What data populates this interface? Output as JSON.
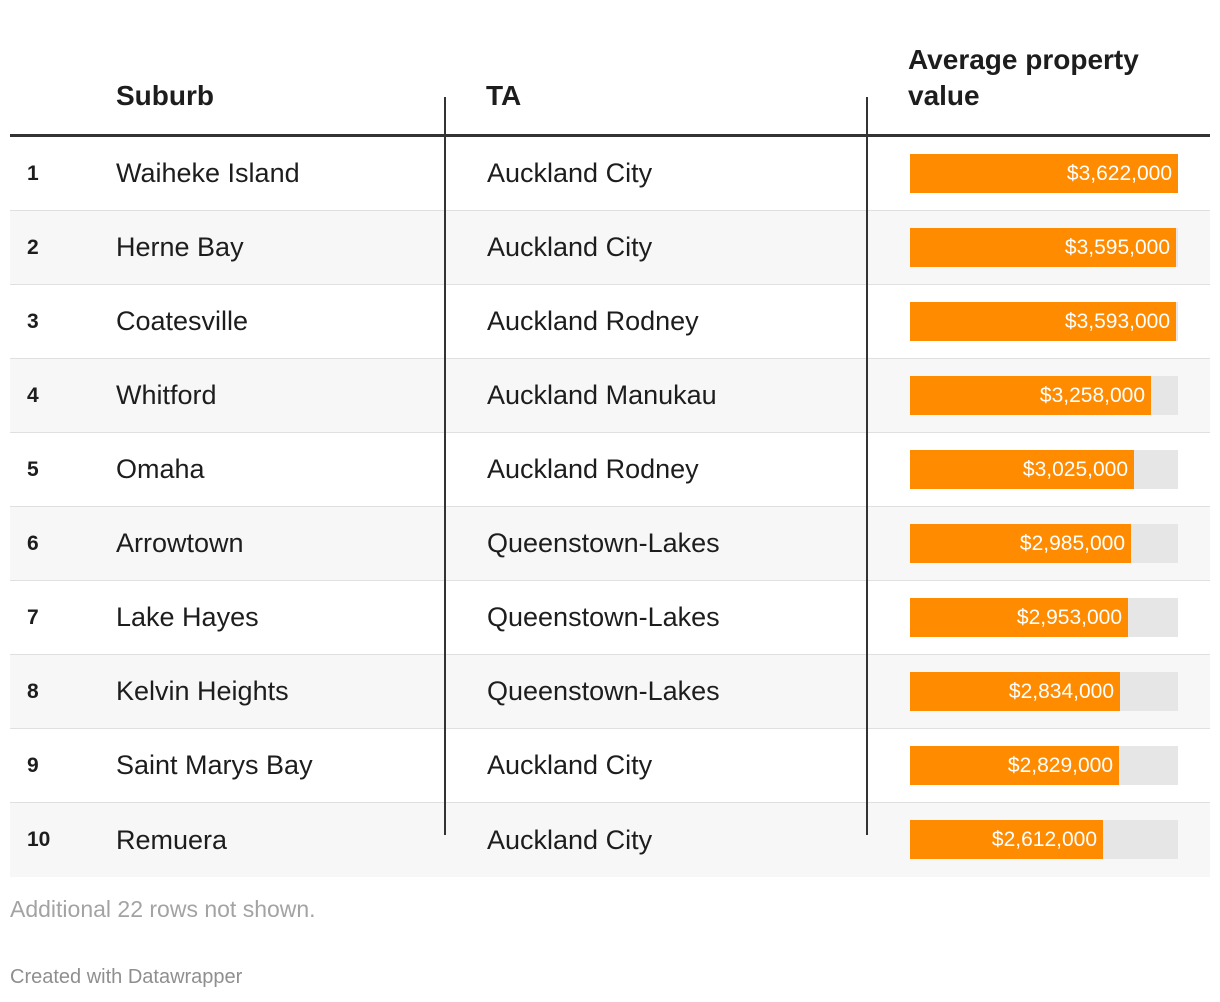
{
  "table": {
    "columns": {
      "rank": "",
      "suburb": "Suburb",
      "ta": "TA",
      "value": "Average property value"
    },
    "notes": "Additional 22 rows not shown.",
    "credit": "Created with Datawrapper",
    "bar_color": "#ff8c00",
    "track_color": "#e6e6e6"
  },
  "chart_data": {
    "type": "table",
    "columns": [
      "",
      "Suburb",
      "TA",
      "Average property value"
    ],
    "bar_max": 3622000,
    "rows": [
      {
        "rank": "1",
        "suburb": "Waiheke Island",
        "ta": "Auckland City",
        "value": 3622000,
        "label": "$3,622,000"
      },
      {
        "rank": "2",
        "suburb": "Herne Bay",
        "ta": "Auckland City",
        "value": 3595000,
        "label": "$3,595,000"
      },
      {
        "rank": "3",
        "suburb": "Coatesville",
        "ta": "Auckland Rodney",
        "value": 3593000,
        "label": "$3,593,000"
      },
      {
        "rank": "4",
        "suburb": "Whitford",
        "ta": "Auckland Manukau",
        "value": 3258000,
        "label": "$3,258,000"
      },
      {
        "rank": "5",
        "suburb": "Omaha",
        "ta": "Auckland Rodney",
        "value": 3025000,
        "label": "$3,025,000"
      },
      {
        "rank": "6",
        "suburb": "Arrowtown",
        "ta": "Queenstown-Lakes",
        "value": 2985000,
        "label": "$2,985,000"
      },
      {
        "rank": "7",
        "suburb": "Lake Hayes",
        "ta": "Queenstown-Lakes",
        "value": 2953000,
        "label": "$2,953,000"
      },
      {
        "rank": "8",
        "suburb": "Kelvin Heights",
        "ta": "Queenstown-Lakes",
        "value": 2834000,
        "label": "$2,834,000"
      },
      {
        "rank": "9",
        "suburb": "Saint Marys Bay",
        "ta": "Auckland City",
        "value": 2829000,
        "label": "$2,829,000"
      },
      {
        "rank": "10",
        "suburb": "Remuera",
        "ta": "Auckland City",
        "value": 2612000,
        "label": "$2,612,000"
      }
    ]
  }
}
